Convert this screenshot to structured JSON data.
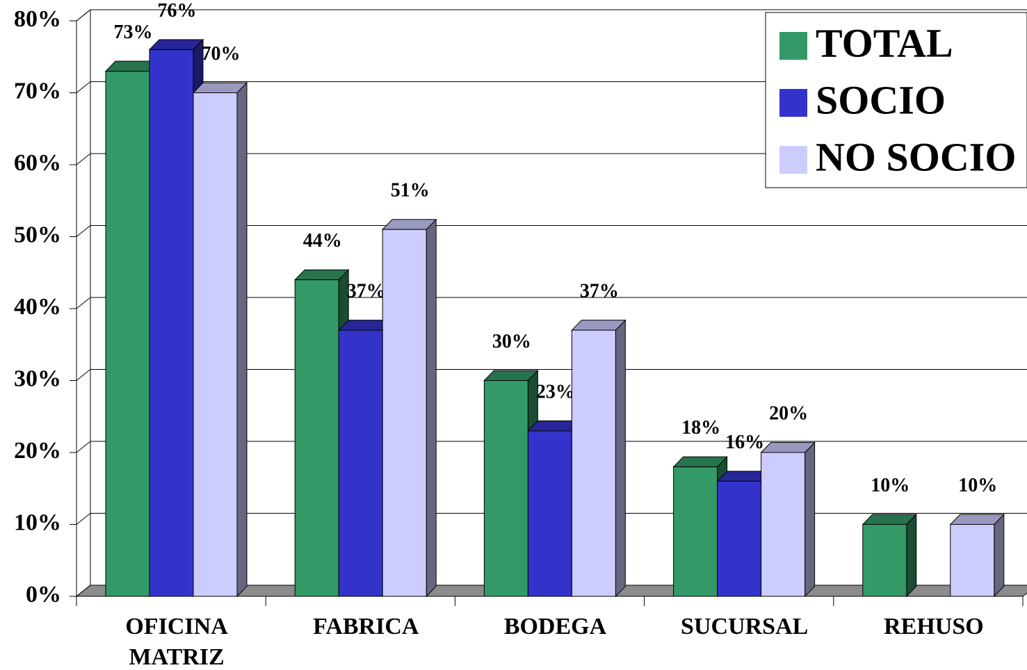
{
  "chart_data": {
    "type": "bar3d",
    "categories": [
      "OFICINA MATRIZ",
      "FABRICA",
      "BODEGA",
      "SUCURSAL",
      "REHUSO"
    ],
    "series": [
      {
        "name": "TOTAL",
        "color": "#339966",
        "values": [
          73,
          44,
          30,
          18,
          10
        ],
        "value_labels": [
          "73%",
          "44%",
          "30%",
          "18%",
          "10%"
        ]
      },
      {
        "name": "SOCIO",
        "color": "#3333cc",
        "values": [
          76,
          37,
          23,
          16,
          null
        ],
        "value_labels": [
          "76%",
          "37%",
          "23%",
          "16%",
          null
        ]
      },
      {
        "name": "NO SOCIO",
        "color": "#ccccff",
        "values": [
          70,
          51,
          37,
          20,
          10
        ],
        "value_labels": [
          "70%",
          "51%",
          "37%",
          "20%",
          "10%"
        ]
      }
    ],
    "ylim": [
      0,
      80
    ],
    "yticks": [
      {
        "value": 0,
        "label": "0%"
      },
      {
        "value": 10,
        "label": "10%"
      },
      {
        "value": 20,
        "label": "20%"
      },
      {
        "value": 30,
        "label": "30%"
      },
      {
        "value": 40,
        "label": "40%"
      },
      {
        "value": 50,
        "label": "50%"
      },
      {
        "value": 60,
        "label": "60%"
      },
      {
        "value": 70,
        "label": "70%"
      },
      {
        "value": 80,
        "label": "80%"
      }
    ],
    "grid": true,
    "legend": "upper-right"
  }
}
